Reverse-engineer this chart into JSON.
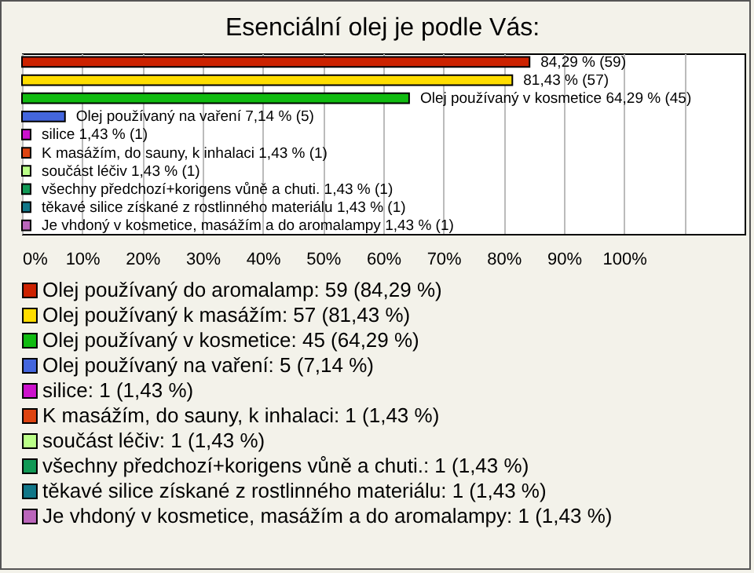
{
  "chart_data": {
    "type": "bar",
    "orientation": "horizontal",
    "stacked": true,
    "title": "Esenciální olej je podle Vás:",
    "categories": [
      null,
      null,
      null,
      null,
      null,
      null,
      null,
      null,
      null,
      null
    ],
    "series": [
      {
        "name": "Olej používaný do aromalamp: 59 (84,29 %)",
        "color": "#cc2200",
        "values": [
          84.29,
          null,
          null,
          null,
          null,
          null,
          null,
          null,
          null,
          null
        ],
        "value_labels": [
          "84,29 % (59)",
          null,
          null,
          null,
          null,
          null,
          null,
          null,
          null,
          null
        ]
      },
      {
        "name": "Olej používaný k masážím: 57 (81,43 %)",
        "color": "#ffdd00",
        "values": [
          null,
          81.43,
          null,
          null,
          null,
          null,
          null,
          null,
          null,
          null
        ],
        "value_labels": [
          null,
          "81,43 % (57)",
          null,
          null,
          null,
          null,
          null,
          null,
          null,
          null
        ]
      },
      {
        "name": "Olej používaný v kosmetice: 45 (64,29 %)",
        "color": "#11bb11",
        "values": [
          null,
          null,
          64.29,
          null,
          null,
          null,
          null,
          null,
          null,
          null
        ],
        "value_labels": [
          null,
          null,
          "Olej používaný v kosmetice 64,29 % (45)",
          null,
          null,
          null,
          null,
          null,
          null,
          null
        ]
      },
      {
        "name": "Olej používaný na vaření: 5 (7,14 %)",
        "color": "#4466dd",
        "values": [
          null,
          null,
          null,
          7.14,
          null,
          null,
          null,
          null,
          null,
          null
        ],
        "value_labels": [
          null,
          null,
          null,
          "Olej používaný na vaření 7,14 % (5)",
          null,
          null,
          null,
          null,
          null,
          null
        ]
      },
      {
        "name": "silice: 1 (1,43 %)",
        "color": "#cc11cc",
        "values": [
          null,
          null,
          null,
          null,
          1.43,
          null,
          null,
          null,
          null,
          null
        ],
        "value_labels": [
          null,
          null,
          null,
          null,
          "silice 1,43 % (1)",
          null,
          null,
          null,
          null,
          null
        ]
      },
      {
        "name": "K masážím, do sauny, k inhalaci: 1 (1,43 %)",
        "color": "#dd4411",
        "values": [
          null,
          null,
          null,
          null,
          null,
          1.43,
          null,
          null,
          null,
          null
        ],
        "value_labels": [
          null,
          null,
          null,
          null,
          null,
          "K masážím, do sauny, k inhalaci 1,43 % (1)",
          null,
          null,
          null,
          null
        ]
      },
      {
        "name": "součást léčiv: 1 (1,43 %)",
        "color": "#bbff88",
        "values": [
          null,
          null,
          null,
          null,
          null,
          null,
          1.43,
          null,
          null,
          null
        ],
        "value_labels": [
          null,
          null,
          null,
          null,
          null,
          null,
          "součást léčiv 1,43 % (1)",
          null,
          null,
          null
        ]
      },
      {
        "name": "všechny předchozí+korigens vůně a chuti.: 1 (1,43 %)",
        "color": "#119955",
        "values": [
          null,
          null,
          null,
          null,
          null,
          null,
          null,
          1.43,
          null,
          null
        ],
        "value_labels": [
          null,
          null,
          null,
          null,
          null,
          null,
          null,
          "všechny předchozí+korigens vůně a chuti. 1,43 % (1)",
          null,
          null
        ]
      },
      {
        "name": "těkavé silice získané z rostlinného materiálu: 1 (1,43 %)",
        "color": "#117788",
        "values": [
          null,
          null,
          null,
          null,
          null,
          null,
          null,
          null,
          1.43,
          null
        ],
        "value_labels": [
          null,
          null,
          null,
          null,
          null,
          null,
          null,
          null,
          "těkavé silice získané z rostlinného materiálu 1,43 % (1)",
          null
        ]
      },
      {
        "name": "Je vhdoný v kosmetice, masážím a do aromalampy: 1 (1,43 %)",
        "color": "#bb66bb",
        "values": [
          null,
          null,
          null,
          null,
          null,
          null,
          null,
          null,
          null,
          1.43
        ],
        "value_labels": [
          null,
          null,
          null,
          null,
          null,
          null,
          null,
          null,
          null,
          "Je vhdoný v kosmetice, masážím a do aromalampy 1,43 % (1)"
        ]
      }
    ],
    "xlim": [
      0,
      120
    ],
    "xticks": [
      {
        "value": 0,
        "label": "0%"
      },
      {
        "value": 10,
        "label": "10%"
      },
      {
        "value": 20,
        "label": "20%"
      },
      {
        "value": 30,
        "label": "30%"
      },
      {
        "value": 40,
        "label": "40%"
      },
      {
        "value": 50,
        "label": "50%"
      },
      {
        "value": 60,
        "label": "60%"
      },
      {
        "value": 70,
        "label": "70%"
      },
      {
        "value": 80,
        "label": "80%"
      },
      {
        "value": 90,
        "label": "90%"
      },
      {
        "value": 100,
        "label": "100%"
      },
      {
        "value": 110,
        "label": null
      }
    ],
    "grid": true,
    "legend": "bottom"
  }
}
